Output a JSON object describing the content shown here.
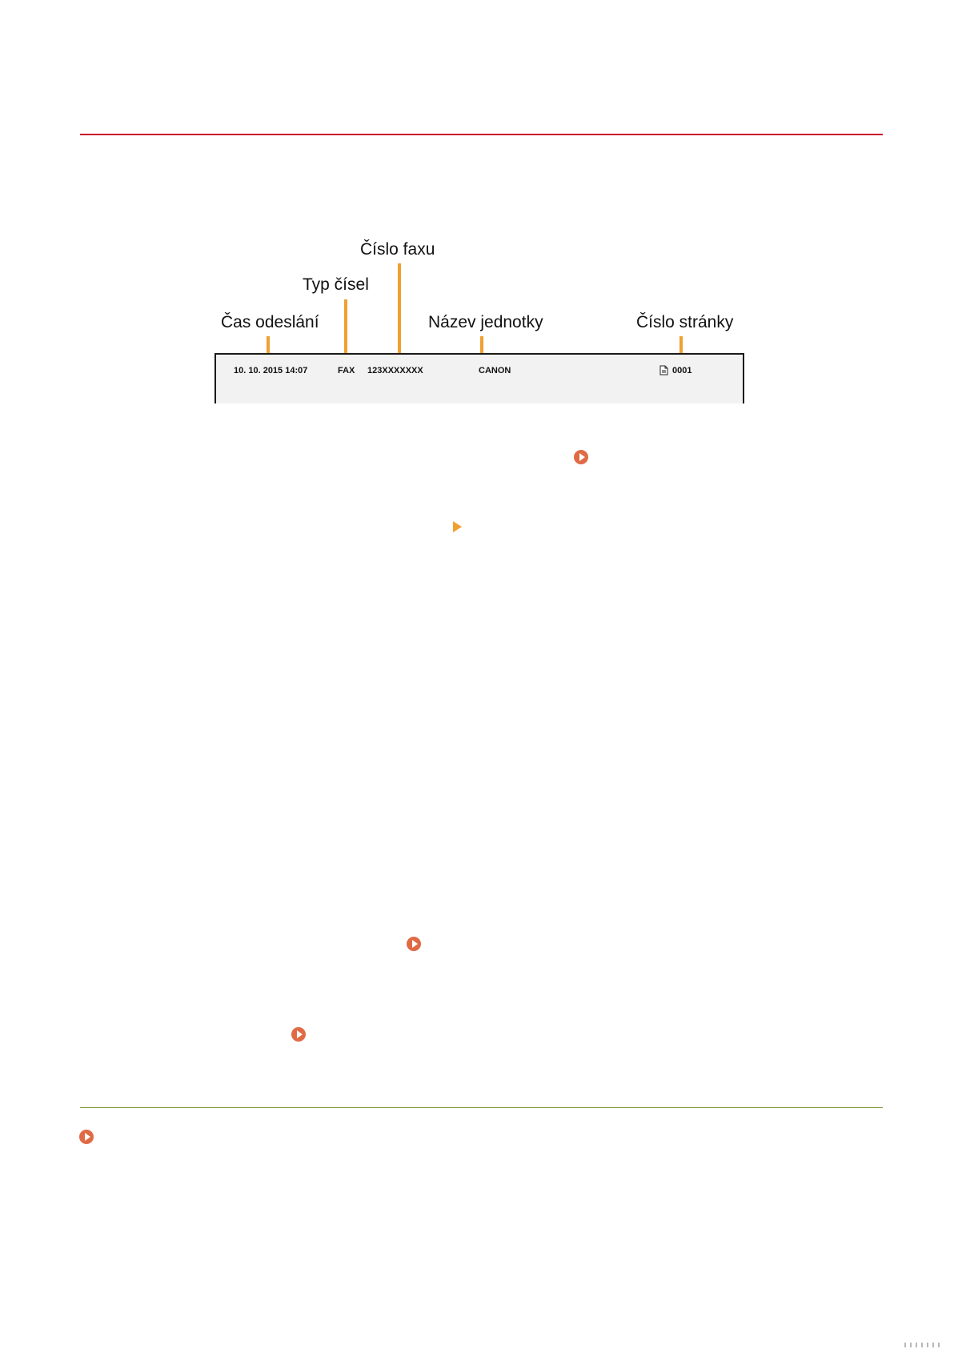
{
  "diagram": {
    "callouts": [
      {
        "key": "send_time",
        "label": "Čas odeslání"
      },
      {
        "key": "number_type",
        "label": "Typ čísel"
      },
      {
        "key": "fax_number",
        "label": "Číslo faxu"
      },
      {
        "key": "unit_name",
        "label": "Název jednotky"
      },
      {
        "key": "page_number",
        "label": "Číslo stránky"
      }
    ],
    "header": {
      "datetime": "10. 10. 2015  14:07",
      "type": "FAX",
      "number": "123XXXXXXX",
      "unit": "CANON",
      "page": "0001"
    }
  },
  "colors": {
    "title_rule": "#c8102e",
    "section_rule": "#7a9a3a",
    "leader": "#f0a030",
    "link_icon": "#e06a45"
  },
  "icons": [
    "circle-arrow-link-icon",
    "triangle-arrow-icon",
    "page-icon"
  ]
}
